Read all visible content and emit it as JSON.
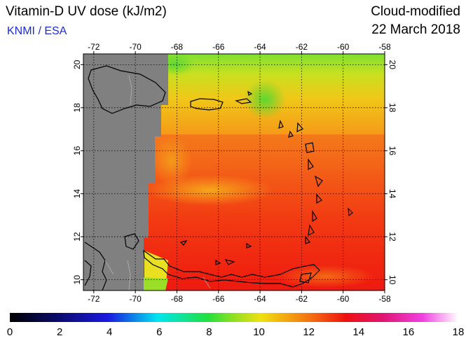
{
  "header": {
    "title": "Vitamin-D UV dose (kJ/m2)",
    "organization": "KNMI / ESA",
    "product": "Cloud-modified",
    "date": "22 March 2018"
  },
  "map": {
    "lon_range": [
      -72.5,
      -58
    ],
    "lat_range": [
      9.5,
      20.5
    ],
    "lon_ticks": [
      "-72",
      "-70",
      "-68",
      "-66",
      "-64",
      "-62",
      "-60",
      "-58"
    ],
    "lat_ticks": [
      "10",
      "12",
      "14",
      "16",
      "18",
      "20"
    ],
    "no_data_color": "#808080",
    "grid": "dotted"
  },
  "colorbar": {
    "ticks": [
      "0",
      "2",
      "4",
      "6",
      "8",
      "10",
      "12",
      "14",
      "16",
      "18"
    ],
    "range": [
      0,
      18
    ]
  }
}
